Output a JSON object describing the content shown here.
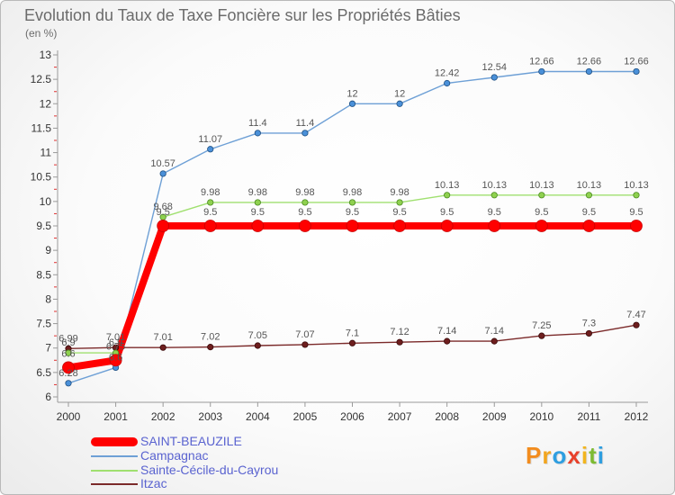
{
  "chart_data": {
    "type": "line",
    "title": "Evolution du Taux de Taxe Foncière sur les Propriétés Bâties",
    "ylabel": "(en %)",
    "xlabel": "",
    "x": [
      "2000",
      "2001",
      "2002",
      "2003",
      "2004",
      "2005",
      "2006",
      "2007",
      "2008",
      "2009",
      "2010",
      "2011",
      "2012"
    ],
    "ylim": [
      6,
      13
    ],
    "yticks": [
      6,
      6.5,
      7,
      7.5,
      8,
      8.5,
      9,
      9.5,
      10,
      10.5,
      11,
      11.5,
      12,
      12.5,
      13
    ],
    "grid": false,
    "legend_position": "bottom-left",
    "series": [
      {
        "name": "SAINT-BEAUZILE",
        "color": "#ff0000",
        "marker_color": "#ff0000",
        "marker_stroke": "#c80000",
        "values": [
          6.6,
          6.75,
          9.5,
          9.5,
          9.5,
          9.5,
          9.5,
          9.5,
          9.5,
          9.5,
          9.5,
          9.5,
          9.5
        ]
      },
      {
        "name": "Campagnac",
        "color": "#6ea0d6",
        "marker_color": "#4a90d9",
        "marker_stroke": "#1f4f80",
        "values": [
          6.28,
          6.6,
          10.57,
          11.07,
          11.4,
          11.4,
          12,
          12,
          12.42,
          12.54,
          12.66,
          12.66,
          12.66
        ]
      },
      {
        "name": "Sainte-Cécile-du-Cayrou",
        "color": "#a0e070",
        "marker_color": "#8fd14f",
        "marker_stroke": "#4a8a20",
        "values": [
          6.9,
          6.9,
          9.68,
          9.98,
          9.98,
          9.98,
          9.98,
          9.98,
          10.13,
          10.13,
          10.13,
          10.13,
          10.13
        ]
      },
      {
        "name": "Itzac",
        "color": "#7b2a2a",
        "marker_color": "#6e1e1e",
        "marker_stroke": "#3a0a0a",
        "values": [
          6.99,
          7.01,
          7.01,
          7.02,
          7.05,
          7.07,
          7.1,
          7.12,
          7.14,
          7.14,
          7.25,
          7.3,
          7.47
        ]
      }
    ]
  },
  "logo": {
    "text": "Proxiti",
    "letter_colors": [
      "#f28c1e",
      "#f2a51e",
      "#2e9ee0",
      "#e8402a",
      "#f2b51e",
      "#7dbb32",
      "#2e9ee0"
    ]
  }
}
